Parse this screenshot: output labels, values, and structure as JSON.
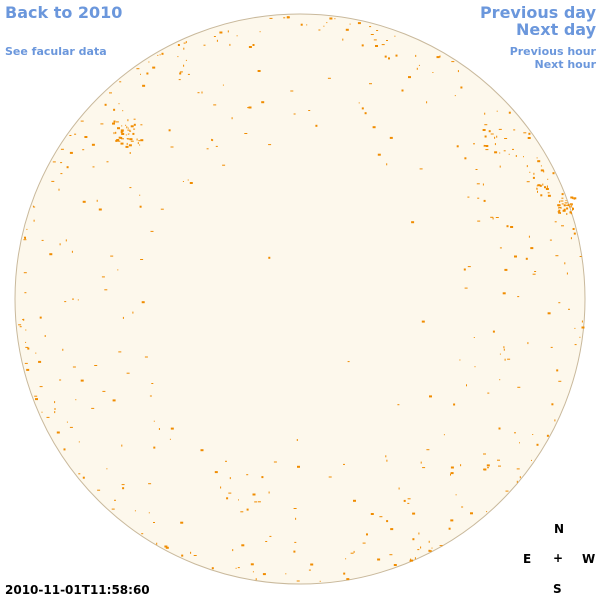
{
  "links": {
    "back": "Back to 2010",
    "facular": "See facular data",
    "previous_day": "Previous day",
    "next_day": "Next day",
    "previous_hour": "Previous hour",
    "next_hour": "Next hour"
  },
  "timestamp": "2010-11-01T11:58:60",
  "compass": {
    "north": "N",
    "east": "E",
    "center": "+",
    "west": "W",
    "south": "S"
  }
}
